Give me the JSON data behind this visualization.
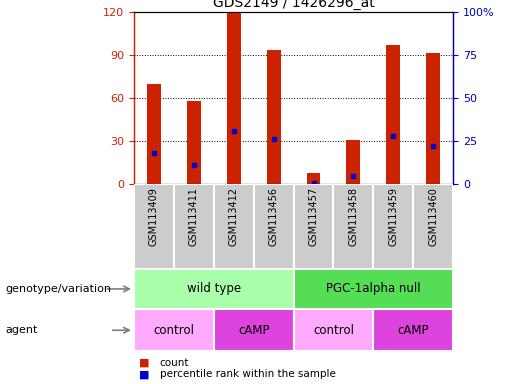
{
  "title": "GDS2149 / 1426296_at",
  "samples": [
    "GSM113409",
    "GSM113411",
    "GSM113412",
    "GSM113456",
    "GSM113457",
    "GSM113458",
    "GSM113459",
    "GSM113460"
  ],
  "counts": [
    70,
    58,
    119,
    93,
    8,
    31,
    97,
    91
  ],
  "percentile_ranks": [
    18,
    11,
    31,
    26,
    1,
    5,
    28,
    22
  ],
  "ylim_left": [
    0,
    120
  ],
  "ylim_right": [
    0,
    100
  ],
  "yticks_left": [
    0,
    30,
    60,
    90,
    120
  ],
  "yticks_right": [
    0,
    25,
    50,
    75,
    100
  ],
  "yticklabels_right": [
    "0",
    "25",
    "50",
    "75",
    "100%"
  ],
  "bar_color": "#cc2200",
  "dot_color": "#0000cc",
  "bar_width": 0.35,
  "genotype_groups": [
    {
      "label": "wild type",
      "start": 0,
      "end": 4,
      "color": "#aaffaa"
    },
    {
      "label": "PGC-1alpha null",
      "start": 4,
      "end": 8,
      "color": "#55dd55"
    }
  ],
  "agent_groups": [
    {
      "label": "control",
      "start": 0,
      "end": 2,
      "color": "#ffaaff"
    },
    {
      "label": "cAMP",
      "start": 2,
      "end": 4,
      "color": "#dd44dd"
    },
    {
      "label": "control",
      "start": 4,
      "end": 6,
      "color": "#ffaaff"
    },
    {
      "label": "cAMP",
      "start": 6,
      "end": 8,
      "color": "#dd44dd"
    }
  ],
  "legend_count_color": "#cc2200",
  "legend_dot_color": "#0000cc",
  "xlabel_genotype": "genotype/variation",
  "xlabel_agent": "agent",
  "tick_color_left": "#cc2200",
  "tick_color_right": "#0000bb",
  "sample_box_color": "#cccccc",
  "grid_color": "black",
  "grid_style": "dotted"
}
